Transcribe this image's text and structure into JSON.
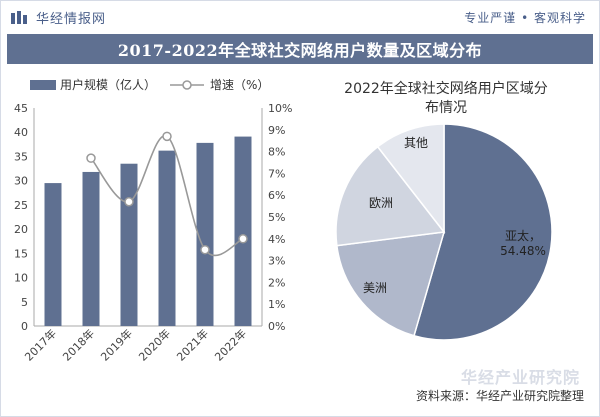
{
  "header": {
    "brand_name": "华经情报网",
    "slogan": "专业严谨 • 客观科学",
    "main_title": "2017-2022年全球社交网络用户数量及区域分布"
  },
  "footer": {
    "source": "资料来源：华经产业研究院整理",
    "watermark": "华经产业研究院"
  },
  "colors": {
    "bar": "#5f7091",
    "line": "#999999",
    "pie": [
      "#5f7091",
      "#b0b8cb",
      "#d0d5e0",
      "#e4e7ee"
    ]
  },
  "chart_data": [
    {
      "type": "bar",
      "categories": [
        "2017年",
        "2018年",
        "2019年",
        "2020年",
        "2021年",
        "2022年"
      ],
      "series": [
        {
          "name": "用户规模（亿人）",
          "type": "bar",
          "axis": "left",
          "values": [
            29.5,
            31.8,
            33.5,
            36.2,
            37.8,
            39.1
          ]
        },
        {
          "name": "增速（%）",
          "type": "line",
          "axis": "right",
          "values": [
            null,
            7.7,
            5.7,
            8.7,
            3.5,
            4.0
          ]
        }
      ],
      "ylim": [
        0,
        45
      ],
      "yticks": [
        "0",
        "5",
        "10",
        "15",
        "20",
        "25",
        "30",
        "35",
        "40",
        "45"
      ],
      "y2lim": [
        0,
        10
      ],
      "y2ticks": [
        "0%",
        "1%",
        "2%",
        "3%",
        "4%",
        "5%",
        "6%",
        "7%",
        "8%",
        "9%",
        "10%"
      ],
      "legend": "top-left",
      "grid": false
    },
    {
      "type": "pie",
      "title": "2022年全球社交网络用户区域分布情况",
      "slices": [
        {
          "label": "亚太",
          "value": 54.48,
          "value_label": "54.48%"
        },
        {
          "label": "美洲",
          "value": 18.5
        },
        {
          "label": "欧洲",
          "value": 16.5
        },
        {
          "label": "其他",
          "value": 10.52
        }
      ]
    }
  ]
}
